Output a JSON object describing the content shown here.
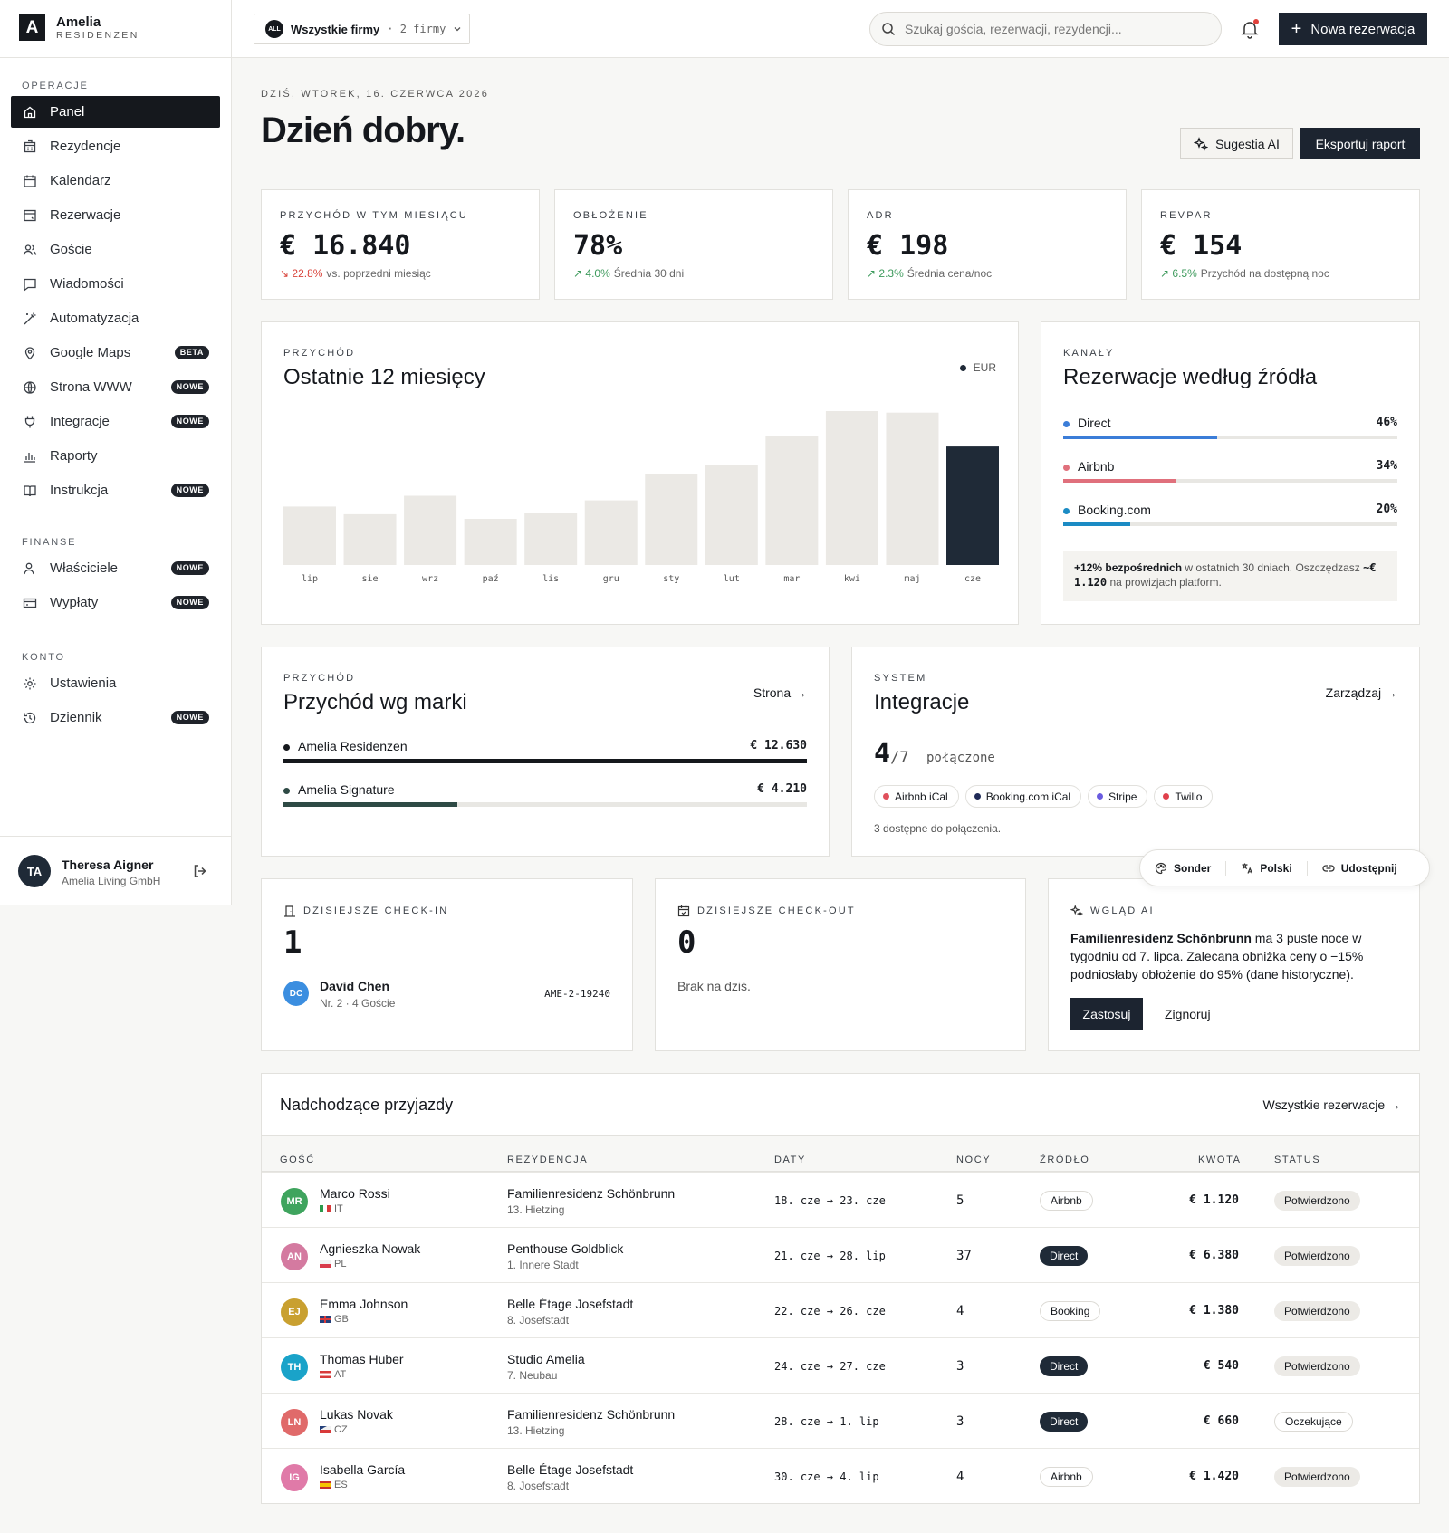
{
  "brand": {
    "logo_letter": "A",
    "name": "Amelia",
    "sub": "RESIDENZEN"
  },
  "sidebar": {
    "sections": [
      {
        "label": "OPERACJE",
        "items": [
          {
            "label": "Panel",
            "icon": "home-icon",
            "active": true
          },
          {
            "label": "Rezydencje",
            "icon": "building-icon"
          },
          {
            "label": "Kalendarz",
            "icon": "calendar-icon"
          },
          {
            "label": "Rezerwacje",
            "icon": "booking-icon"
          },
          {
            "label": "Goście",
            "icon": "users-icon"
          },
          {
            "label": "Wiadomości",
            "icon": "message-icon"
          },
          {
            "label": "Automatyzacja",
            "icon": "wand-icon"
          },
          {
            "label": "Google Maps",
            "icon": "map-pin-icon",
            "badge": "BETA"
          },
          {
            "label": "Strona WWW",
            "icon": "globe-icon",
            "badge": "NOWE"
          },
          {
            "label": "Integracje",
            "icon": "plug-icon",
            "badge": "NOWE"
          },
          {
            "label": "Raporty",
            "icon": "bar-chart-icon"
          },
          {
            "label": "Instrukcja",
            "icon": "book-icon",
            "badge": "NOWE"
          }
        ]
      },
      {
        "label": "FINANSE",
        "items": [
          {
            "label": "Właściciele",
            "icon": "owner-icon",
            "badge": "NOWE"
          },
          {
            "label": "Wypłaty",
            "icon": "wallet-icon",
            "badge": "NOWE"
          }
        ]
      },
      {
        "label": "KONTO",
        "items": [
          {
            "label": "Ustawienia",
            "icon": "gear-icon"
          },
          {
            "label": "Dziennik",
            "icon": "history-icon",
            "badge": "NOWE"
          }
        ]
      }
    ]
  },
  "user": {
    "initials": "TA",
    "name": "Theresa Aigner",
    "org": "Amelia Living GmbH"
  },
  "topbar": {
    "company_chip": "ALL",
    "company_label": "Wszystkie firmy",
    "company_count": "· 2 firmy",
    "search_placeholder": "Szukaj gościa, rezerwacji, rezydencji...",
    "new_button": "Nowa rezerwacja"
  },
  "header": {
    "date": "DZIŚ, WTOREK, 16. CZERWCA 2026",
    "greeting": "Dzień dobry.",
    "ai_button": "Sugestia AI",
    "export_button": "Eksportuj raport"
  },
  "kpis": [
    {
      "label": "PRZYCHÓD W TYM MIESIĄCU",
      "value": "€ 16.840",
      "trend": "down",
      "delta": "↘ 22.8%",
      "note": "vs. poprzedni miesiąc"
    },
    {
      "label": "OBŁOŻENIE",
      "value": "78%",
      "trend": "up",
      "delta": "↗ 4.0%",
      "note": "Średnia 30 dni"
    },
    {
      "label": "ADR",
      "value": "€ 198",
      "trend": "up",
      "delta": "↗ 2.3%",
      "note": "Średnia cena/noc"
    },
    {
      "label": "REVPAR",
      "value": "€ 154",
      "trend": "up",
      "delta": "↗ 6.5%",
      "note": "Przychód na dostępną noc"
    }
  ],
  "revenue_card": {
    "label": "PRZYCHÓD",
    "title": "Ostatnie 12 miesięcy",
    "legend": "EUR"
  },
  "chart_data": {
    "type": "bar",
    "title": "Ostatnie 12 miesięcy",
    "categories": [
      "lip",
      "sie",
      "wrz",
      "paź",
      "lis",
      "gru",
      "sty",
      "lut",
      "mar",
      "kwi",
      "maj",
      "cze"
    ],
    "series": [
      {
        "name": "EUR",
        "values": [
          38,
          33,
          45,
          30,
          34,
          42,
          59,
          65,
          84,
          100,
          99,
          77
        ]
      }
    ],
    "highlight_index": 11,
    "ylim": [
      0,
      100
    ],
    "grid": false,
    "legend_position": "top-right",
    "bar_color": "#ebe9e5",
    "highlight_color": "#1f2a37"
  },
  "channels_card": {
    "label": "KANAŁY",
    "title": "Rezerwacje według źródła",
    "items": [
      {
        "name": "Direct",
        "percent_label": "46%",
        "percent": 46,
        "color": "#3b7dd8"
      },
      {
        "name": "Airbnb",
        "percent_label": "34%",
        "percent": 34,
        "color": "#e0707c"
      },
      {
        "name": "Booking.com",
        "percent_label": "20%",
        "percent": 20,
        "color": "#1b8bc4"
      }
    ],
    "note_bold": "+12% bezpośrednich",
    "note_text": " w ostatnich 30 dniach. Oszczędzasz ",
    "note_amount": "~€ 1.120",
    "note_end": " na prowizjach platform."
  },
  "brand_card": {
    "label": "PRZYCHÓD",
    "title": "Przychód wg marki",
    "link": "Strona →",
    "items": [
      {
        "name": "Amelia Residenzen",
        "value": "€ 12.630",
        "share": 100,
        "color": "#15181d"
      },
      {
        "name": "Amelia Signature",
        "value": "€ 4.210",
        "share": 33.3,
        "color": "#2e4a45"
      }
    ]
  },
  "integrations_card": {
    "label": "SYSTEM",
    "title": "Integracje",
    "link": "Zarządzaj →",
    "connected": "4",
    "total": "/7",
    "connected_word": "połączone",
    "chips": [
      {
        "name": "Airbnb iCal",
        "color": "#e0505c"
      },
      {
        "name": "Booking.com iCal",
        "color": "#1f2a57"
      },
      {
        "name": "Stripe",
        "color": "#6a5ce0"
      },
      {
        "name": "Twilio",
        "color": "#e0404c"
      }
    ],
    "available": "3 dostępne do połączenia."
  },
  "floatbar": {
    "items": [
      "Sonder",
      "Polski",
      "Udostępnij"
    ]
  },
  "checkin": {
    "label": "DZISIEJSZE CHECK-IN",
    "count": "1",
    "guest": {
      "initials": "DC",
      "name": "David Chen",
      "detail": "Nr. 2 · 4 Goście",
      "code": "AME-2-19240",
      "color": "#3b8ee0"
    }
  },
  "checkout": {
    "label": "DZISIEJSZE CHECK-OUT",
    "count": "0",
    "empty": "Brak na dziś."
  },
  "ai_insight": {
    "label": "WGLĄD AI",
    "bold": "Familienresidenz Schönbrunn",
    "text": " ma 3 puste noce w tygodniu od 7. lipca. Zalecana obniżka ceny o −15% podniosłaby obłożenie do 95% (dane historyczne).",
    "apply": "Zastosuj",
    "ignore": "Zignoruj"
  },
  "arrivals": {
    "title": "Nadchodzące przyjazdy",
    "link": "Wszystkie rezerwacje →",
    "columns": [
      "GOŚĆ",
      "REZYDENCJA",
      "DATY",
      "NOCY",
      "ŹRÓDŁO",
      "KWOTA",
      "STATUS"
    ],
    "rows": [
      {
        "initials": "MR",
        "color": "#3fa45e",
        "name": "Marco Rossi",
        "country": "IT",
        "flag": "it",
        "residence": "Familienresidenz Schönbrunn",
        "district": "13. Hietzing",
        "dates": "18. cze → 23. cze",
        "nights": "5",
        "source": "Airbnb",
        "source_style": "light",
        "amount": "€ 1.120",
        "status": "Potwierdzono",
        "status_style": "ok"
      },
      {
        "initials": "AN",
        "color": "#d47aa0",
        "name": "Agnieszka Nowak",
        "country": "PL",
        "flag": "pl",
        "residence": "Penthouse Goldblick",
        "district": "1. Innere Stadt",
        "dates": "21. cze → 28. lip",
        "nights": "37",
        "source": "Direct",
        "source_style": "dark",
        "amount": "€ 6.380",
        "status": "Potwierdzono",
        "status_style": "ok"
      },
      {
        "initials": "EJ",
        "color": "#c9a030",
        "name": "Emma Johnson",
        "country": "GB",
        "flag": "gb",
        "residence": "Belle Étage Josefstadt",
        "district": "8. Josefstadt",
        "dates": "22. cze → 26. cze",
        "nights": "4",
        "source": "Booking",
        "source_style": "light",
        "amount": "€ 1.380",
        "status": "Potwierdzono",
        "status_style": "ok"
      },
      {
        "initials": "TH",
        "color": "#1aa3c9",
        "name": "Thomas Huber",
        "country": "AT",
        "flag": "at",
        "residence": "Studio Amelia",
        "district": "7. Neubau",
        "dates": "24. cze → 27. cze",
        "nights": "3",
        "source": "Direct",
        "source_style": "dark",
        "amount": "€ 540",
        "status": "Potwierdzono",
        "status_style": "ok"
      },
      {
        "initials": "LN",
        "color": "#e06a6a",
        "name": "Lukas Novak",
        "country": "CZ",
        "flag": "cz",
        "residence": "Familienresidenz Schönbrunn",
        "district": "13. Hietzing",
        "dates": "28. cze → 1. lip",
        "nights": "3",
        "source": "Direct",
        "source_style": "dark",
        "amount": "€ 660",
        "status": "Oczekujące",
        "status_style": "pend"
      },
      {
        "initials": "IG",
        "color": "#e07aa8",
        "name": "Isabella García",
        "country": "ES",
        "flag": "es",
        "residence": "Belle Étage Josefstadt",
        "district": "8. Josefstadt",
        "dates": "30. cze → 4. lip",
        "nights": "4",
        "source": "Airbnb",
        "source_style": "light",
        "amount": "€ 1.420",
        "status": "Potwierdzono",
        "status_style": "ok"
      }
    ]
  }
}
